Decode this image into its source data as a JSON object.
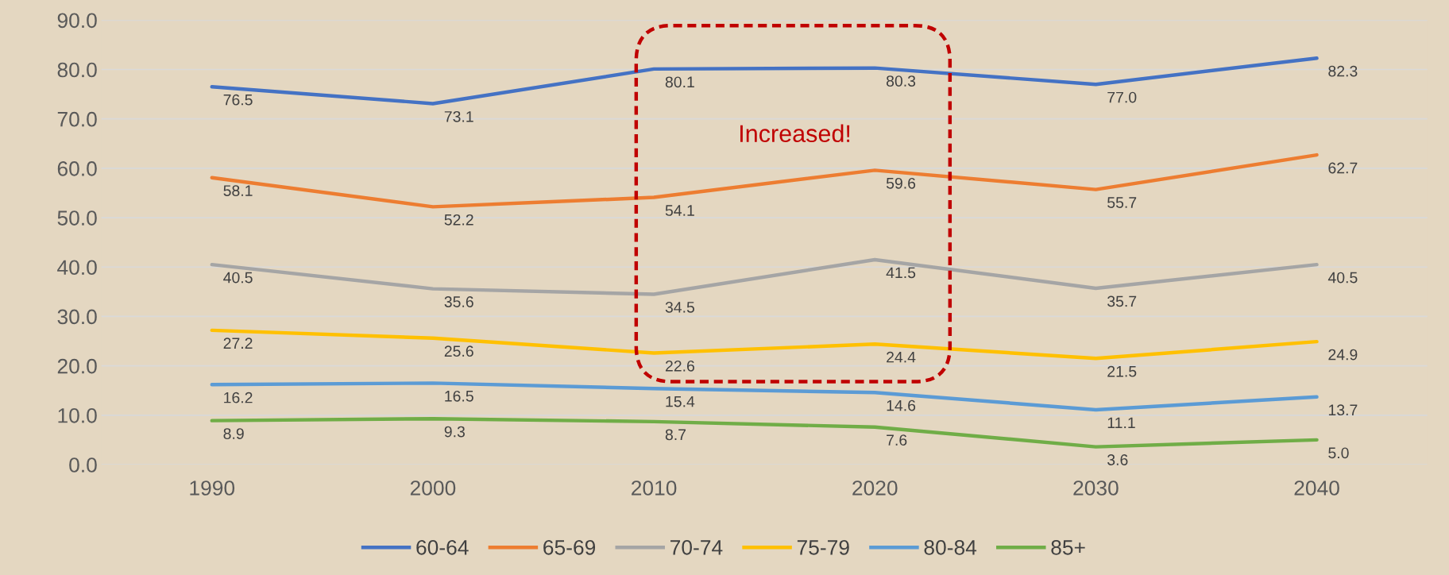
{
  "chart_data": {
    "type": "line",
    "categories": [
      "1990",
      "2000",
      "2010",
      "2020",
      "2030",
      "2040"
    ],
    "series": [
      {
        "name": "60-64",
        "color": "#4472c4",
        "values": [
          76.5,
          73.1,
          80.1,
          80.3,
          77.0,
          82.3
        ],
        "value_labels": [
          "76.5",
          "73.1",
          "80.1",
          "80.3",
          "77.0",
          "82.3"
        ]
      },
      {
        "name": "65-69",
        "color": "#ed7d31",
        "values": [
          58.1,
          52.2,
          54.1,
          59.6,
          55.7,
          62.7
        ],
        "value_labels": [
          "58.1",
          "52.2",
          "54.1",
          "59.6",
          "55.7",
          "62.7"
        ]
      },
      {
        "name": "70-74",
        "color": "#a5a5a5",
        "values": [
          40.5,
          35.6,
          34.5,
          41.5,
          35.7,
          40.5
        ],
        "value_labels": [
          "40.5",
          "35.6",
          "34.5",
          "41.5",
          "35.7",
          "40.5"
        ]
      },
      {
        "name": "75-79",
        "color": "#ffc000",
        "values": [
          27.2,
          25.6,
          22.6,
          24.4,
          21.5,
          24.9
        ],
        "value_labels": [
          "27.2",
          "25.6",
          "22.6",
          "24.4",
          "21.5",
          "24.9"
        ]
      },
      {
        "name": "80-84",
        "color": "#5b9bd5",
        "values": [
          16.2,
          16.5,
          15.4,
          14.6,
          11.1,
          13.7
        ],
        "value_labels": [
          "16.2",
          "16.5",
          "15.4",
          "14.6",
          "11.1",
          "13.7"
        ]
      },
      {
        "name": "85+",
        "color": "#70ad47",
        "values": [
          8.9,
          9.3,
          8.7,
          7.6,
          3.6,
          5.0
        ],
        "value_labels": [
          "8.9",
          "9.3",
          "8.7",
          "7.6",
          "3.6",
          "5.0"
        ]
      }
    ],
    "ylim": [
      0,
      90
    ],
    "yticks": [
      {
        "value": 0,
        "label": "0.0"
      },
      {
        "value": 10,
        "label": "10.0"
      },
      {
        "value": 20,
        "label": "20.0"
      },
      {
        "value": 30,
        "label": "30.0"
      },
      {
        "value": 40,
        "label": "40.0"
      },
      {
        "value": 50,
        "label": "50.0"
      },
      {
        "value": 60,
        "label": "60.0"
      },
      {
        "value": 70,
        "label": "70.0"
      },
      {
        "value": 80,
        "label": "80.0"
      },
      {
        "value": 90,
        "label": "90.0"
      }
    ],
    "grid": "y",
    "legend": "bottom",
    "marker": "none",
    "line_style": "solid",
    "annotations": [
      "Increased!"
    ]
  }
}
